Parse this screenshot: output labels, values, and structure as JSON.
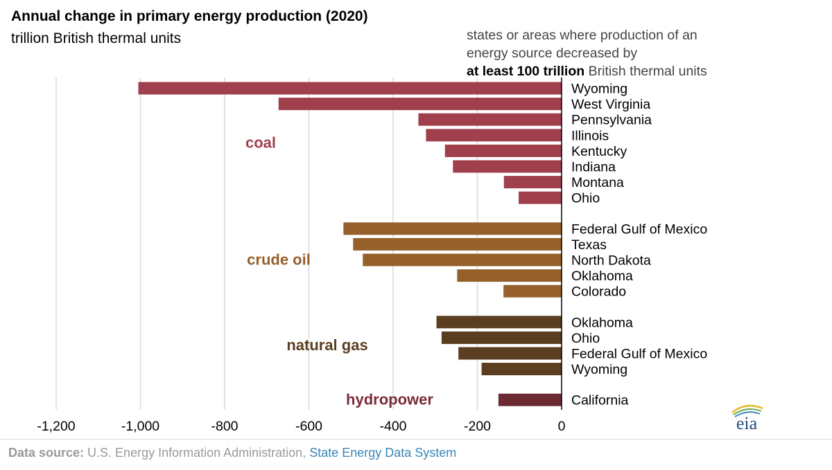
{
  "title": "Annual change in primary energy production (2020)",
  "subtitle": "trillion British thermal units",
  "note": {
    "line1": "states or areas where production of an",
    "line2": "energy source decreased by",
    "bold": "at least 100 trillion",
    "rest": " British thermal units"
  },
  "footer": {
    "label": "Data source:",
    "source": " U.S. Energy Information Administration, ",
    "link": "State Energy Data System"
  },
  "logo_text": "eia",
  "colors": {
    "coal": "#a0404d",
    "crude oil": "#96602c",
    "natural gas": "#5a3e1f",
    "hydropower": "#6b2a32",
    "coal_label": "#a0404d",
    "crude_label": "#96602c",
    "gas_label": "#5a3e1f",
    "hydro_label": "#7a2b3a"
  },
  "chart_data": {
    "type": "bar",
    "orientation": "horizontal",
    "xlim": [
      -1200,
      0
    ],
    "x_ticks": [
      -1200,
      -1000,
      -800,
      -600,
      -400,
      -200,
      0
    ],
    "x_tick_labels": [
      "-1,200",
      "-1,000",
      "-800",
      "-600",
      "-400",
      "-200",
      "0"
    ],
    "grid": true,
    "groups": [
      {
        "name": "coal",
        "bars": [
          {
            "label": "Wyoming",
            "value": -1005
          },
          {
            "label": "West Virginia",
            "value": -672
          },
          {
            "label": "Pennsylvania",
            "value": -340
          },
          {
            "label": "Illinois",
            "value": -322
          },
          {
            "label": "Kentucky",
            "value": -277
          },
          {
            "label": "Indiana",
            "value": -258
          },
          {
            "label": "Montana",
            "value": -137
          },
          {
            "label": "Ohio",
            "value": -102
          }
        ]
      },
      {
        "name": "crude oil",
        "bars": [
          {
            "label": "Federal Gulf of Mexico",
            "value": -518
          },
          {
            "label": "Texas",
            "value": -495
          },
          {
            "label": "North Dakota",
            "value": -472
          },
          {
            "label": "Oklahoma",
            "value": -248
          },
          {
            "label": "Colorado",
            "value": -138
          }
        ]
      },
      {
        "name": "natural gas",
        "bars": [
          {
            "label": "Oklahoma",
            "value": -297
          },
          {
            "label": "Ohio",
            "value": -285
          },
          {
            "label": "Federal Gulf of Mexico",
            "value": -245
          },
          {
            "label": "Wyoming",
            "value": -190
          }
        ]
      },
      {
        "name": "hydropower",
        "bars": [
          {
            "label": "California",
            "value": -150
          }
        ]
      }
    ]
  }
}
